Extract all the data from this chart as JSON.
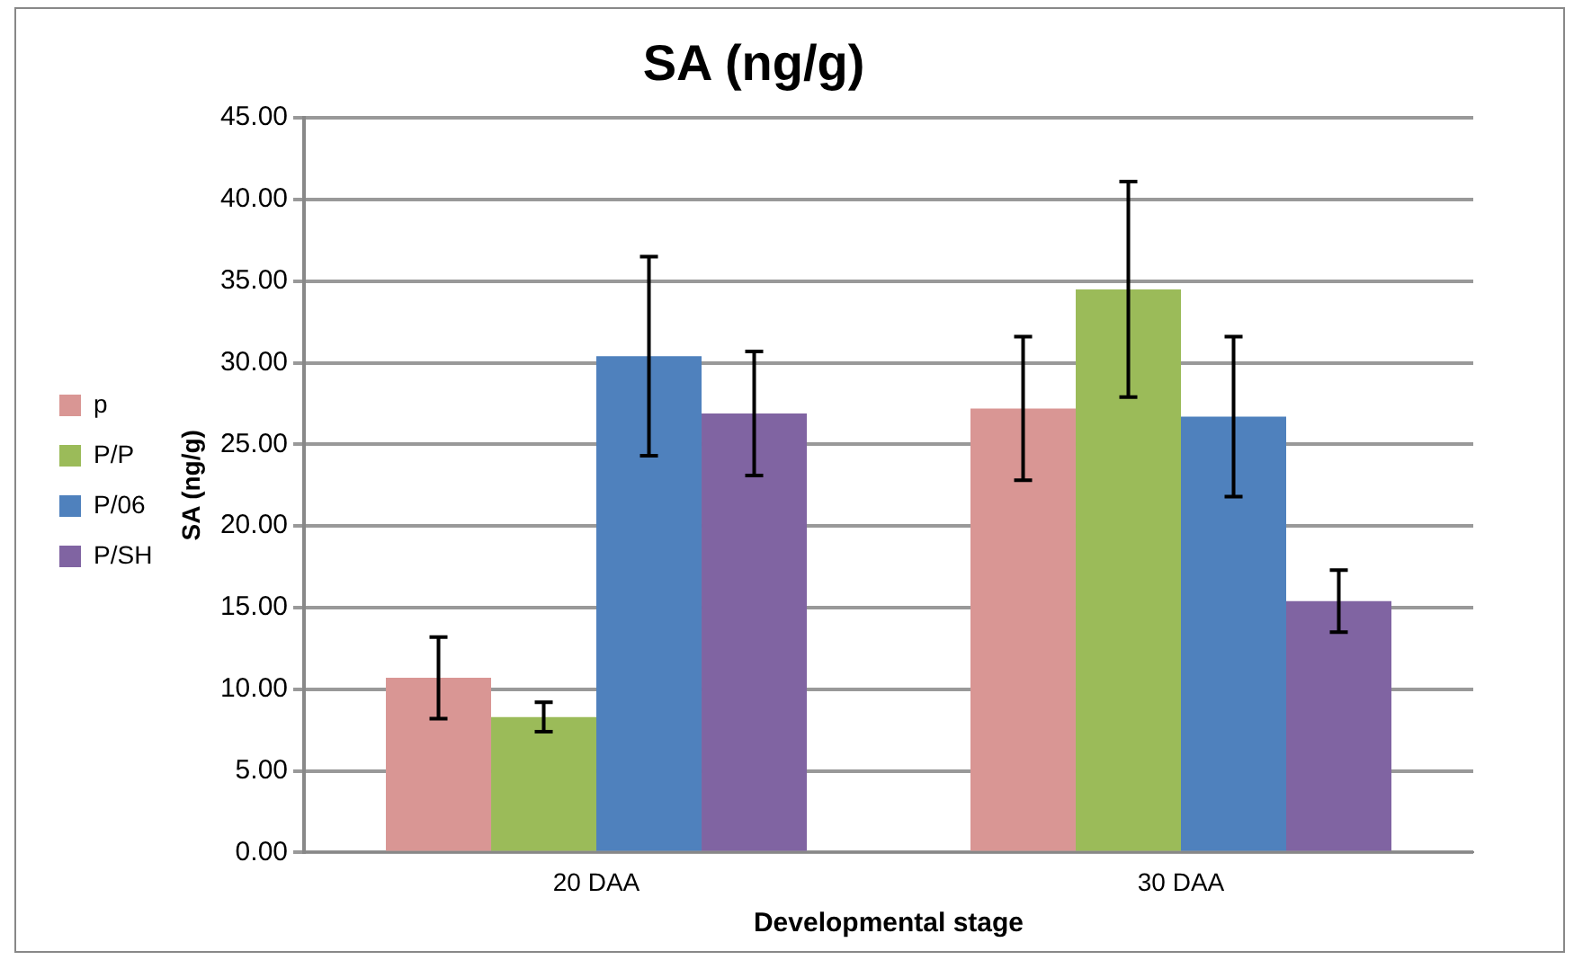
{
  "chart_data": {
    "type": "bar",
    "title": "SA (ng/g)",
    "xlabel": "Developmental stage",
    "ylabel": "SA (ng/g)",
    "categories": [
      "20 DAA",
      "30 DAA"
    ],
    "series": [
      {
        "name": "p",
        "color": "#d99694",
        "values": [
          10.7,
          27.2
        ],
        "errors": [
          2.5,
          4.4
        ]
      },
      {
        "name": "P/P",
        "color": "#9bbb59",
        "values": [
          8.3,
          34.5
        ],
        "errors": [
          0.9,
          6.6
        ]
      },
      {
        "name": "P/06",
        "color": "#4f81bd",
        "values": [
          30.4,
          26.7
        ],
        "errors": [
          6.1,
          4.9
        ]
      },
      {
        "name": "P/SH",
        "color": "#8064a2",
        "values": [
          26.9,
          15.4
        ],
        "errors": [
          3.8,
          1.9
        ]
      }
    ],
    "ylim": [
      0,
      45
    ],
    "yticks": [
      {
        "value": 0,
        "label": "0.00"
      },
      {
        "value": 5,
        "label": "5.00"
      },
      {
        "value": 10,
        "label": "10.00"
      },
      {
        "value": 15,
        "label": "15.00"
      },
      {
        "value": 20,
        "label": "20.00"
      },
      {
        "value": 25,
        "label": "25.00"
      },
      {
        "value": 30,
        "label": "30.00"
      },
      {
        "value": 35,
        "label": "35.00"
      },
      {
        "value": 40,
        "label": "40.00"
      },
      {
        "value": 45,
        "label": "45.00"
      }
    ],
    "grid": "y",
    "legend": "left"
  }
}
